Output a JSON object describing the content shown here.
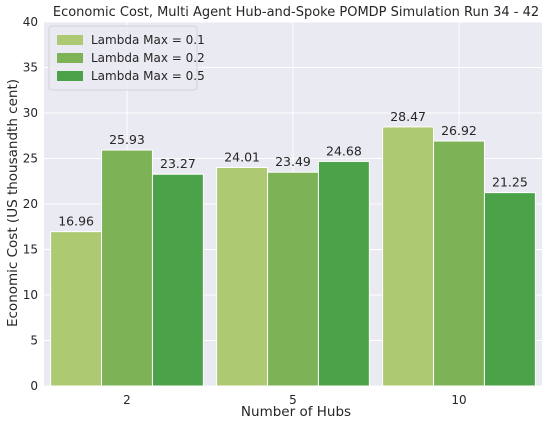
{
  "chart_data": {
    "type": "bar",
    "title": "Economic Cost, Multi Agent Hub-and-Spoke POMDP Simulation Run 34 - 42",
    "xlabel": "Number of Hubs",
    "ylabel": "Economic Cost (US thousandth cent)",
    "categories": [
      "2",
      "5",
      "10"
    ],
    "ylim": [
      0,
      40
    ],
    "yticks": [
      0,
      5,
      10,
      15,
      20,
      25,
      30,
      35,
      40
    ],
    "grid": true,
    "legend_position": "top-left",
    "series": [
      {
        "name": "Lambda Max = 0.1",
        "color": "#adc971",
        "values": [
          16.96,
          24.01,
          28.47
        ]
      },
      {
        "name": "Lambda Max = 0.2",
        "color": "#7db356",
        "values": [
          25.93,
          23.49,
          26.92
        ]
      },
      {
        "name": "Lambda Max = 0.5",
        "color": "#4ca248",
        "values": [
          23.27,
          24.68,
          21.25
        ]
      }
    ],
    "background": "#eaeaf2",
    "grid_color": "#ffffff"
  }
}
